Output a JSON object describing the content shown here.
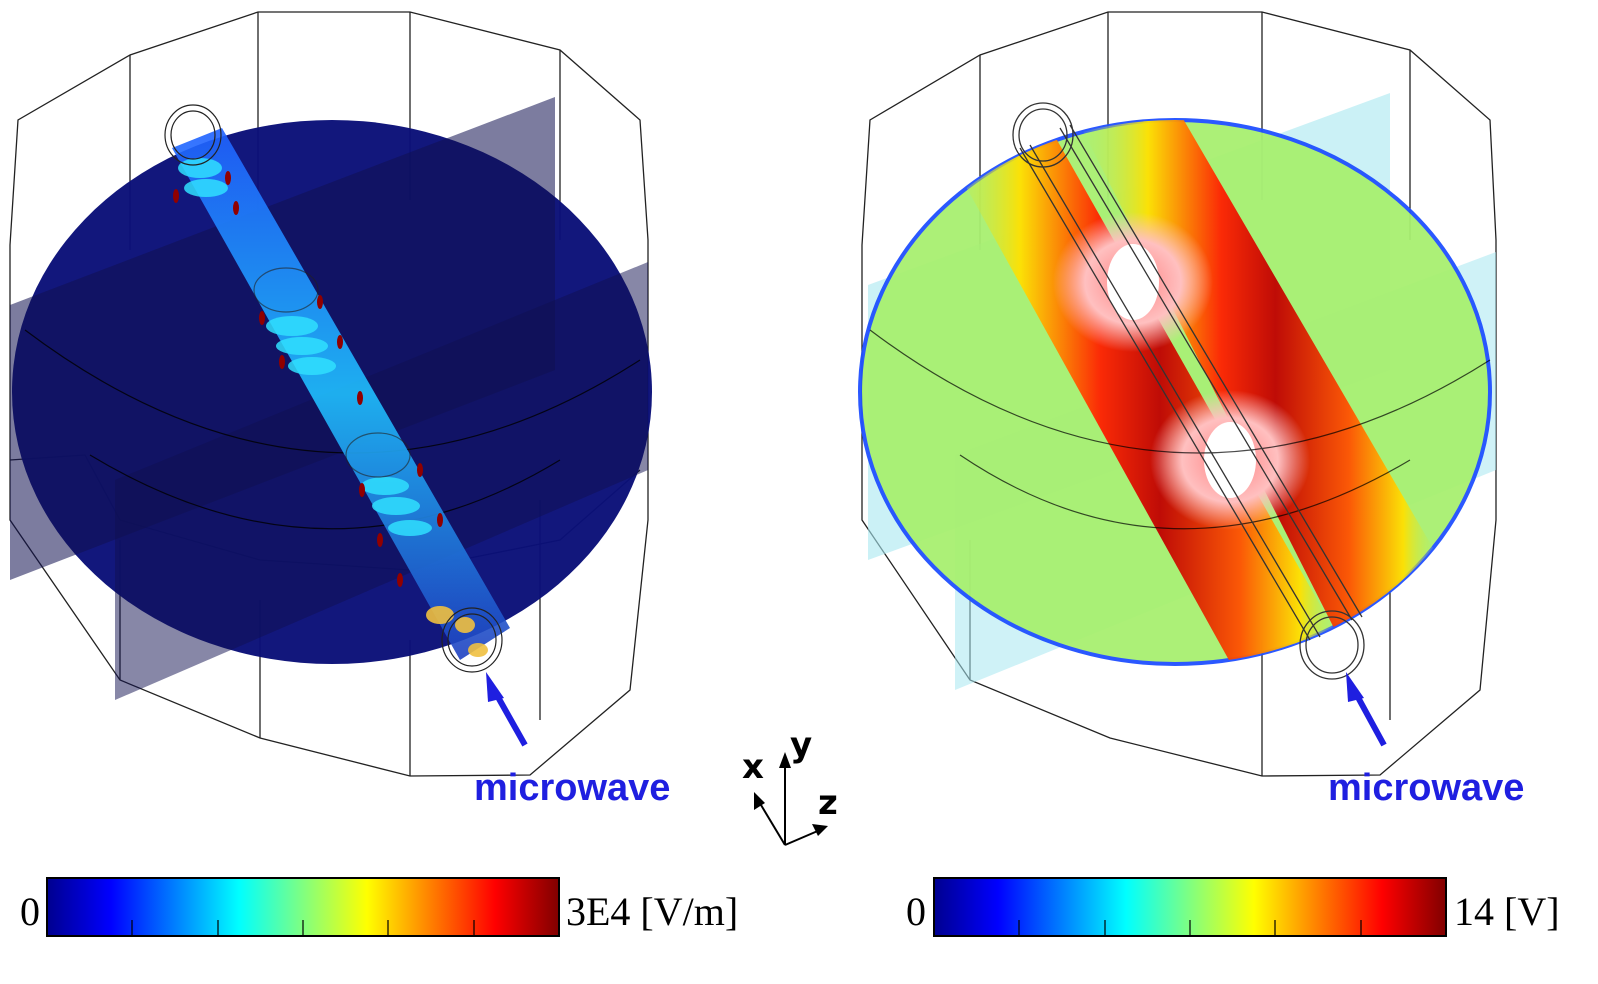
{
  "panels": [
    {
      "id": "electric-field",
      "arrow_label": "microwave",
      "colorbar": {
        "min_label": "0",
        "max_label": "3E4 [V/m]"
      }
    },
    {
      "id": "potential",
      "arrow_label": "microwave",
      "colorbar": {
        "min_label": "0",
        "max_label": "14 [V]"
      }
    }
  ],
  "axes_triad": {
    "x_label": "x",
    "y_label": "y",
    "z_label": "z"
  },
  "colors": {
    "microwave_label": "#1f1fe0",
    "deep_blue": "#0a1070",
    "colormap": [
      "#00008f",
      "#0000ff",
      "#0080ff",
      "#00ffff",
      "#80ff80",
      "#ffff00",
      "#ff8000",
      "#ff0000",
      "#800000"
    ]
  }
}
